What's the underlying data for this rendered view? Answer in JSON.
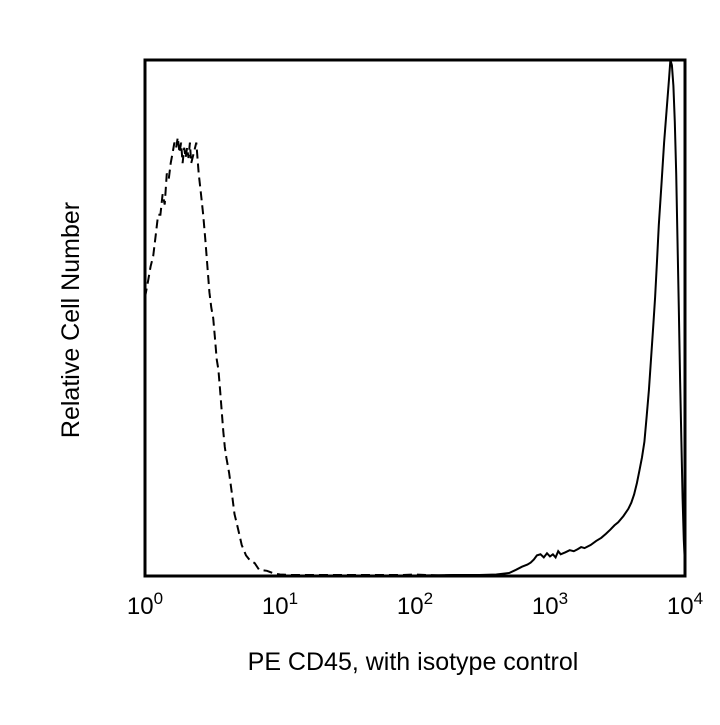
{
  "chart_data": {
    "type": "line",
    "title": "",
    "xlabel": "PE CD45, with isotype control",
    "ylabel": "Relative Cell Number",
    "x_scale": "log",
    "xlim": [
      1,
      10000
    ],
    "ylim": [
      0,
      100
    ],
    "grid": false,
    "legend": "none",
    "x_ticks": [
      {
        "value": 1,
        "base": "10",
        "exp": "0"
      },
      {
        "value": 10,
        "base": "10",
        "exp": "1"
      },
      {
        "value": 100,
        "base": "10",
        "exp": "2"
      },
      {
        "value": 1000,
        "base": "10",
        "exp": "3"
      },
      {
        "value": 10000,
        "base": "10",
        "exp": "4"
      }
    ],
    "series": [
      {
        "style": "dashed",
        "color": "#000000",
        "points": [
          [
            1.0,
            54
          ],
          [
            1.05,
            57
          ],
          [
            1.1,
            60
          ],
          [
            1.15,
            62
          ],
          [
            1.2,
            66
          ],
          [
            1.25,
            70
          ],
          [
            1.3,
            70
          ],
          [
            1.35,
            74
          ],
          [
            1.4,
            72
          ],
          [
            1.45,
            78
          ],
          [
            1.5,
            77
          ],
          [
            1.55,
            80
          ],
          [
            1.6,
            82
          ],
          [
            1.65,
            84
          ],
          [
            1.7,
            83
          ],
          [
            1.75,
            85
          ],
          [
            1.8,
            82
          ],
          [
            1.85,
            84
          ],
          [
            1.9,
            80
          ],
          [
            1.95,
            83
          ],
          [
            2.0,
            81
          ],
          [
            2.05,
            83
          ],
          [
            2.1,
            81
          ],
          [
            2.15,
            84
          ],
          [
            2.2,
            80
          ],
          [
            2.3,
            82
          ],
          [
            2.4,
            84
          ],
          [
            2.5,
            78
          ],
          [
            2.6,
            74
          ],
          [
            2.7,
            70
          ],
          [
            2.8,
            65
          ],
          [
            3.0,
            55
          ],
          [
            3.1,
            52
          ],
          [
            3.2,
            50
          ],
          [
            3.3,
            46
          ],
          [
            3.4,
            42
          ],
          [
            3.5,
            40
          ],
          [
            3.6,
            36
          ],
          [
            3.7,
            32
          ],
          [
            3.8,
            28
          ],
          [
            3.9,
            25
          ],
          [
            4.0,
            23
          ],
          [
            4.2,
            20
          ],
          [
            4.4,
            16
          ],
          [
            4.6,
            12
          ],
          [
            4.8,
            10
          ],
          [
            5.0,
            8
          ],
          [
            5.2,
            6
          ],
          [
            5.6,
            4
          ],
          [
            6.0,
            3
          ],
          [
            6.5,
            2.5
          ],
          [
            7.0,
            1.2
          ],
          [
            8.0,
            1.0
          ],
          [
            9.0,
            0.5
          ],
          [
            10.0,
            0.3
          ],
          [
            12.0,
            0.2
          ],
          [
            15.0,
            0.2
          ],
          [
            20.0,
            0.2
          ],
          [
            30.0,
            0.2
          ],
          [
            50.0,
            0.2
          ],
          [
            80.0,
            0.2
          ],
          [
            100.0,
            0.3
          ],
          [
            150.0,
            0.1
          ],
          [
            200.0,
            0.2
          ],
          [
            300.0,
            0.1
          ],
          [
            500.0,
            0.1
          ],
          [
            1000.0,
            0.1
          ],
          [
            3000.0,
            0.1
          ],
          [
            10000.0,
            0.1
          ]
        ]
      },
      {
        "style": "solid",
        "color": "#000000",
        "points": [
          [
            1.0,
            0.1
          ],
          [
            10.0,
            0.1
          ],
          [
            100.0,
            0.1
          ],
          [
            200.0,
            0.2
          ],
          [
            300.0,
            0.2
          ],
          [
            400.0,
            0.3
          ],
          [
            500.0,
            0.6
          ],
          [
            560.0,
            1.2
          ],
          [
            620.0,
            1.8
          ],
          [
            680.0,
            2.2
          ],
          [
            720.0,
            2.6
          ],
          [
            760.0,
            3.2
          ],
          [
            800.0,
            4.0
          ],
          [
            850.0,
            4.2
          ],
          [
            900.0,
            3.6
          ],
          [
            950.0,
            4.4
          ],
          [
            1000.0,
            3.8
          ],
          [
            1050.0,
            4.2
          ],
          [
            1100.0,
            3.6
          ],
          [
            1150.0,
            4.8
          ],
          [
            1200.0,
            4.2
          ],
          [
            1300.0,
            4.6
          ],
          [
            1400.0,
            5.0
          ],
          [
            1500.0,
            4.8
          ],
          [
            1600.0,
            5.2
          ],
          [
            1700.0,
            5.6
          ],
          [
            1800.0,
            5.4
          ],
          [
            2000.0,
            6.0
          ],
          [
            2200.0,
            6.8
          ],
          [
            2400.0,
            7.4
          ],
          [
            2600.0,
            8.2
          ],
          [
            2800.0,
            9.0
          ],
          [
            3000.0,
            9.8
          ],
          [
            3200.0,
            10.4
          ],
          [
            3500.0,
            11.6
          ],
          [
            3800.0,
            13.0
          ],
          [
            4000.0,
            14.2
          ],
          [
            4200.0,
            15.8
          ],
          [
            4400.0,
            18.0
          ],
          [
            4600.0,
            20.5
          ],
          [
            4800.0,
            23.0
          ],
          [
            5000.0,
            26.0
          ],
          [
            5200.0,
            31.0
          ],
          [
            5400.0,
            36.0
          ],
          [
            5600.0,
            42.0
          ],
          [
            5800.0,
            48.0
          ],
          [
            6000.0,
            54.0
          ],
          [
            6200.0,
            61.0
          ],
          [
            6400.0,
            68.0
          ],
          [
            6700.0,
            76.0
          ],
          [
            7000.0,
            84.0
          ],
          [
            7300.0,
            90.0
          ],
          [
            7600.0,
            96.0
          ],
          [
            7800.0,
            100.0
          ],
          [
            8000.0,
            99.0
          ],
          [
            8200.0,
            95.0
          ],
          [
            8400.0,
            88.0
          ],
          [
            8600.0,
            78.0
          ],
          [
            8800.0,
            65.0
          ],
          [
            9000.0,
            52.0
          ],
          [
            9200.0,
            38.0
          ],
          [
            9400.0,
            26.0
          ],
          [
            9600.0,
            15.0
          ],
          [
            9800.0,
            7.0
          ],
          [
            10000.0,
            2.0
          ]
        ]
      }
    ]
  }
}
